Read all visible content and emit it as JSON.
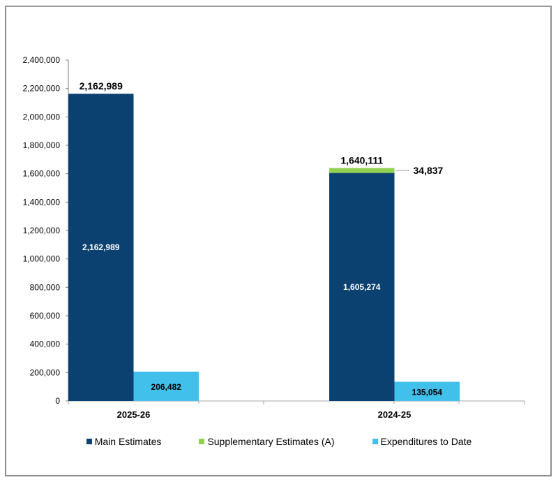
{
  "chart_data": {
    "type": "bar",
    "stacked_groups": true,
    "title": "",
    "xlabel": "",
    "ylabel": "",
    "ylim": [
      0,
      2400000
    ],
    "ytick_step": 200000,
    "yticks": [
      "0",
      "200,000",
      "400,000",
      "600,000",
      "800,000",
      "1,000,000",
      "1,200,000",
      "1,400,000",
      "1,600,000",
      "1,800,000",
      "2,000,000",
      "2,200,000",
      "2,400,000"
    ],
    "grid": false,
    "legend_position": "bottom",
    "categories": [
      "2025-26",
      "2024-25"
    ],
    "series": [
      {
        "name": "Main Estimates",
        "color": "#0b4170",
        "values": [
          2162989,
          1605274
        ],
        "labels": [
          "2,162,989",
          "1,605,274"
        ],
        "stack": "estimates"
      },
      {
        "name": "Supplementary Estimates (A)",
        "color": "#92d050",
        "values": [
          0,
          34837
        ],
        "labels": [
          "",
          "34,837"
        ],
        "stack": "estimates"
      },
      {
        "name": "Expenditures to Date",
        "color": "#41c0eb",
        "values": [
          206482,
          135054
        ],
        "labels": [
          "206,482",
          "135,054"
        ],
        "stack": "expenditures"
      }
    ],
    "totals": {
      "values": [
        2162989,
        1640111
      ],
      "labels": [
        "2,162,989",
        "1,640,111"
      ]
    }
  }
}
